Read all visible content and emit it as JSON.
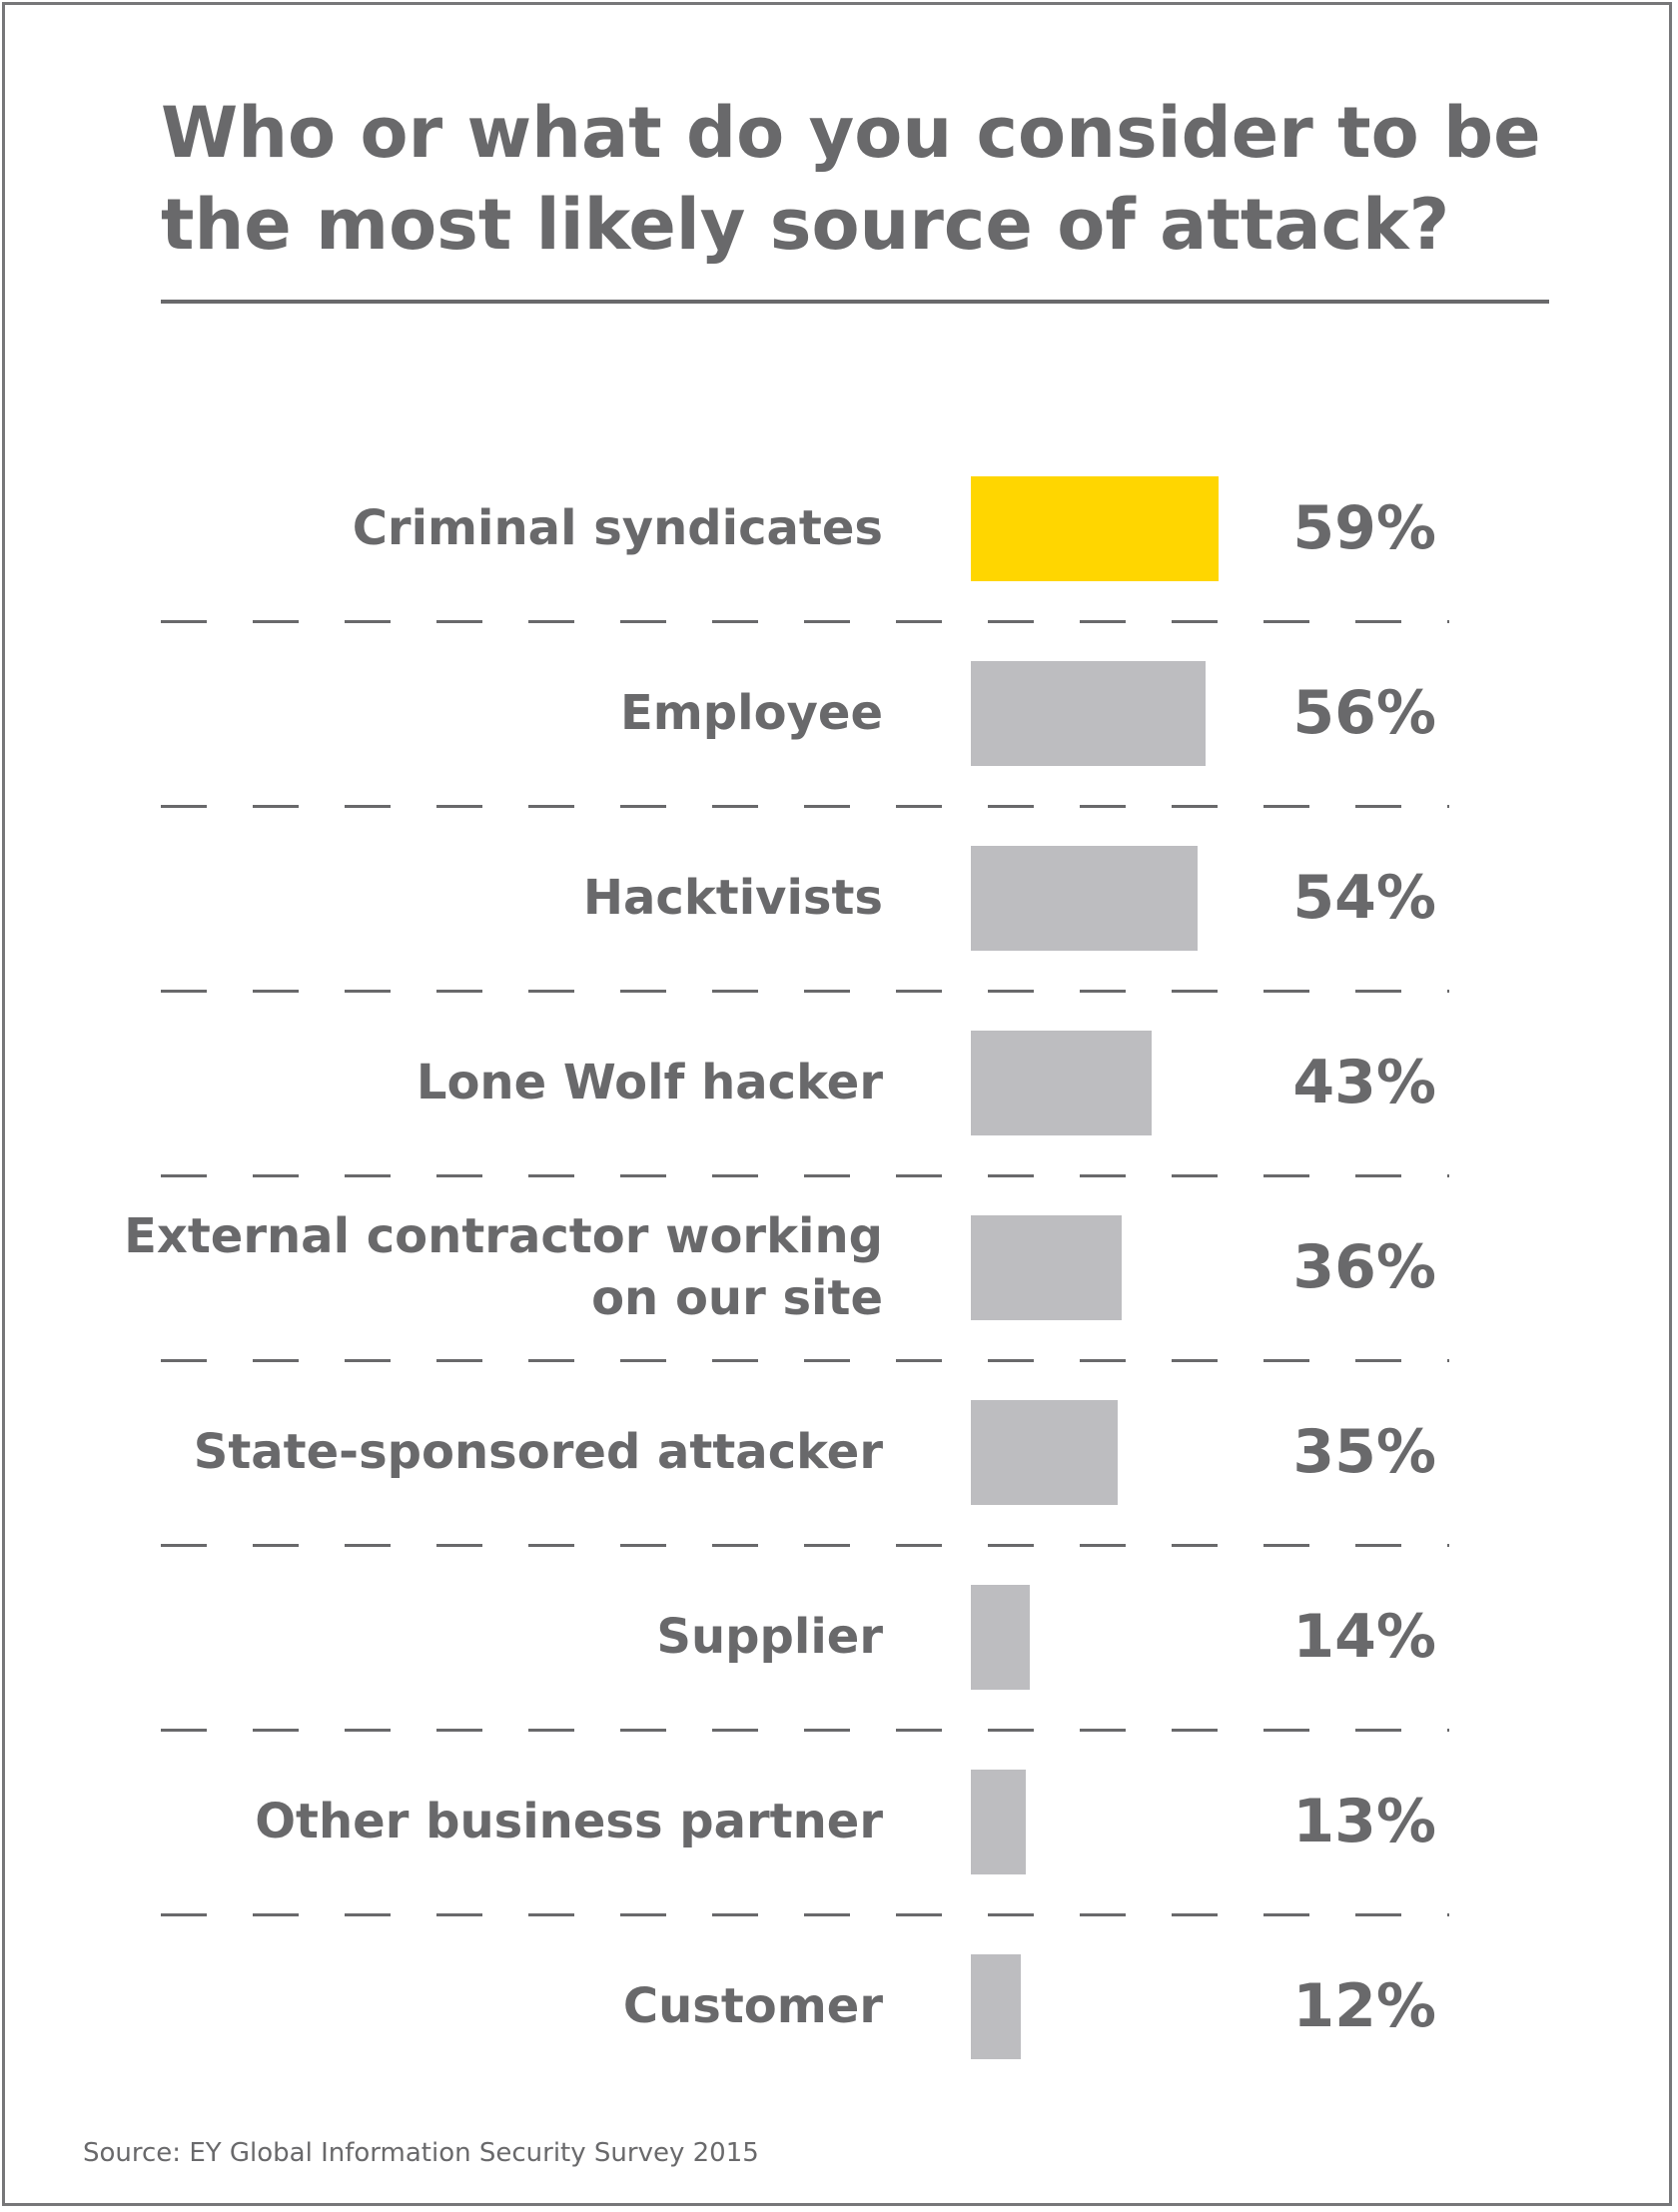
{
  "chart_data": {
    "type": "bar",
    "orientation": "horizontal",
    "title": "Who or what do you consider to be\nthe most likely source of attack?",
    "categories": [
      "Criminal syndicates",
      "Employee",
      "Hacktivists",
      "Lone Wolf hacker",
      "External contractor working\non our site",
      "State-sponsored attacker",
      "Supplier",
      "Other business partner",
      "Customer"
    ],
    "values": [
      59,
      56,
      54,
      43,
      36,
      35,
      14,
      13,
      12
    ],
    "value_labels": [
      "59%",
      "56%",
      "54%",
      "43%",
      "36%",
      "35%",
      "14%",
      "13%",
      "12%"
    ],
    "unit": "%",
    "xlim": [
      0,
      100
    ],
    "highlight_index": 0,
    "colors": {
      "highlight": "#ffd600",
      "bar": "#bdbdc0",
      "text": "#69696b",
      "frame": "#777779"
    },
    "grid": false,
    "legend": "none"
  },
  "source": "Source: EY Global Information Security Survey 2015"
}
